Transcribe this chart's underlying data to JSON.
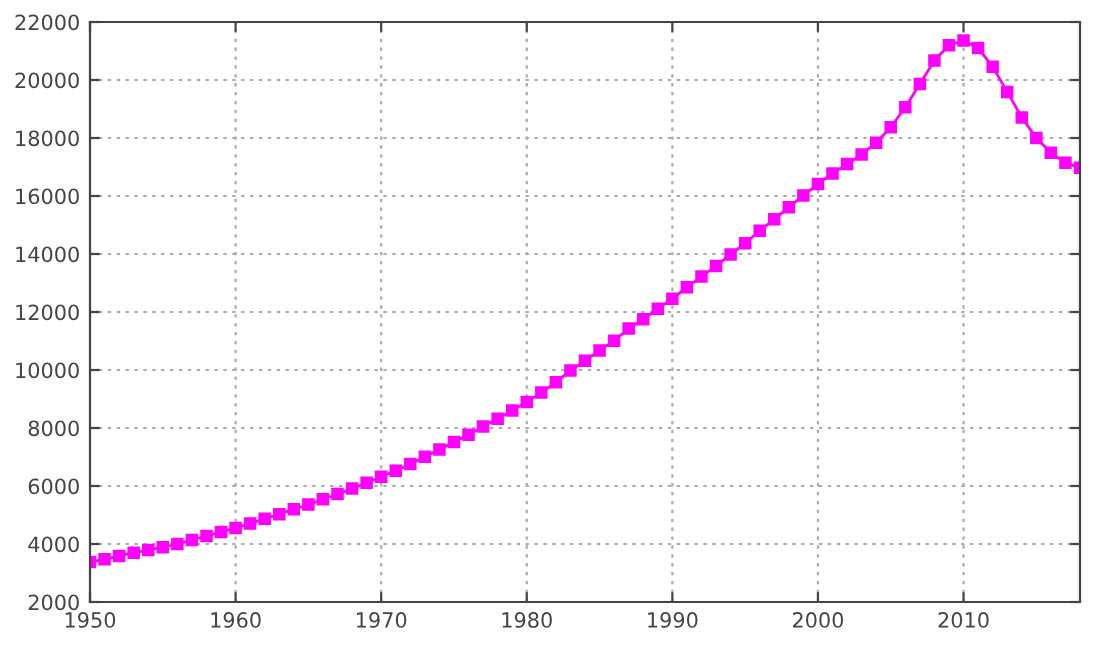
{
  "chart_data": {
    "type": "line",
    "x": [
      1950,
      1951,
      1952,
      1953,
      1954,
      1955,
      1956,
      1957,
      1958,
      1959,
      1960,
      1961,
      1962,
      1963,
      1964,
      1965,
      1966,
      1967,
      1968,
      1969,
      1970,
      1971,
      1972,
      1973,
      1974,
      1975,
      1976,
      1977,
      1978,
      1979,
      1980,
      1981,
      1982,
      1983,
      1984,
      1985,
      1986,
      1987,
      1988,
      1989,
      1990,
      1991,
      1992,
      1993,
      1994,
      1995,
      1996,
      1997,
      1998,
      1999,
      2000,
      2001,
      2002,
      2003,
      2004,
      2005,
      2006,
      2007,
      2008,
      2009,
      2010,
      2011,
      2012,
      2013,
      2014,
      2015,
      2016,
      2017,
      2018
    ],
    "series": [
      {
        "color": "#ff00ff",
        "values": [
          3380,
          3470,
          3590,
          3700,
          3790,
          3890,
          4000,
          4140,
          4280,
          4410,
          4550,
          4710,
          4870,
          5030,
          5200,
          5360,
          5540,
          5720,
          5910,
          6110,
          6320,
          6530,
          6760,
          7010,
          7260,
          7520,
          7770,
          8050,
          8320,
          8600,
          8900,
          9220,
          9580,
          9980,
          10320,
          10670,
          11010,
          11430,
          11750,
          12110,
          12460,
          12850,
          13220,
          13590,
          13980,
          14370,
          14800,
          15200,
          15610,
          16020,
          16410,
          16780,
          17100,
          17430,
          17840,
          18370,
          19060,
          19860,
          20670,
          21200,
          21360,
          21100,
          20460,
          19590,
          18710,
          18000,
          17490,
          17150,
          16970
        ]
      }
    ],
    "xlim": [
      1950,
      2018
    ],
    "xticks": [
      1950,
      1960,
      1970,
      1980,
      1990,
      2000,
      2010
    ],
    "ylim": [
      2000,
      22000
    ],
    "yticks": [
      2000,
      4000,
      6000,
      8000,
      10000,
      12000,
      14000,
      16000,
      18000,
      20000,
      22000
    ],
    "grid": true,
    "marker": "square",
    "line_style": "solid"
  }
}
